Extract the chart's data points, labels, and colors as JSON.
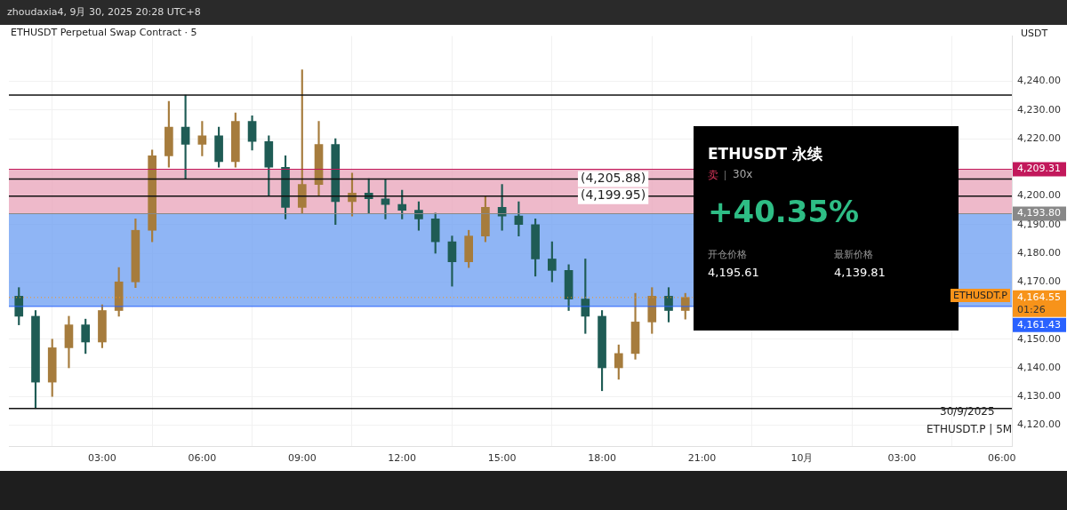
{
  "chart_data": {
    "type": "candlestick",
    "title": "ETHUSDT Perpetual Swap Contract · 5",
    "subtitle": "zhoudaxia4, 9月 30, 2025 20:28 UTC+8",
    "ylabel": "USDT",
    "x": [
      "2025-09-30T00:30",
      "2025-09-30T01:00",
      "2025-09-30T01:30",
      "2025-09-30T02:00",
      "2025-09-30T02:30",
      "2025-09-30T03:00",
      "2025-09-30T03:30",
      "2025-09-30T04:00",
      "2025-09-30T04:30",
      "2025-09-30T05:00",
      "2025-09-30T05:30",
      "2025-09-30T06:00",
      "2025-09-30T06:30",
      "2025-09-30T07:00",
      "2025-09-30T07:30",
      "2025-09-30T08:00",
      "2025-09-30T08:30",
      "2025-09-30T09:00",
      "2025-09-30T09:30",
      "2025-09-30T10:00",
      "2025-09-30T10:30",
      "2025-09-30T11:00",
      "2025-09-30T11:30",
      "2025-09-30T12:00",
      "2025-09-30T12:30",
      "2025-09-30T13:00",
      "2025-09-30T13:30",
      "2025-09-30T14:00",
      "2025-09-30T14:30",
      "2025-09-30T15:00",
      "2025-09-30T15:30",
      "2025-09-30T16:00",
      "2025-09-30T16:30",
      "2025-09-30T17:00",
      "2025-09-30T17:30",
      "2025-09-30T18:00",
      "2025-09-30T18:30",
      "2025-09-30T19:00",
      "2025-09-30T19:30",
      "2025-09-30T20:00",
      "2025-09-30T20:30"
    ],
    "ohlc": [
      [
        4165,
        4168,
        4155,
        4158
      ],
      [
        4158,
        4160,
        4125.8,
        4135
      ],
      [
        4135,
        4150,
        4130,
        4147
      ],
      [
        4147,
        4158,
        4140,
        4155
      ],
      [
        4155,
        4157,
        4145,
        4149
      ],
      [
        4149,
        4162,
        4147,
        4160
      ],
      [
        4160,
        4175,
        4158,
        4170
      ],
      [
        4170,
        4192,
        4168,
        4188
      ],
      [
        4188,
        4216,
        4184,
        4214
      ],
      [
        4214,
        4233,
        4210,
        4224
      ],
      [
        4224,
        4235.2,
        4206,
        4218
      ],
      [
        4218,
        4226,
        4214,
        4221
      ],
      [
        4221,
        4224,
        4210,
        4212
      ],
      [
        4212,
        4229,
        4210,
        4226
      ],
      [
        4226,
        4228,
        4216,
        4219
      ],
      [
        4219,
        4221,
        4200,
        4210
      ],
      [
        4210,
        4214,
        4192,
        4196
      ],
      [
        4196,
        4244,
        4194,
        4204
      ],
      [
        4204,
        4226,
        4200,
        4218
      ],
      [
        4218,
        4220,
        4190,
        4198
      ],
      [
        4198,
        4208,
        4193,
        4201
      ],
      [
        4201,
        4206,
        4194,
        4199
      ],
      [
        4199,
        4205.88,
        4192,
        4197
      ],
      [
        4197,
        4202,
        4192,
        4195
      ],
      [
        4195,
        4198,
        4188,
        4192
      ],
      [
        4192,
        4194,
        4180,
        4184
      ],
      [
        4184,
        4186,
        4168.5,
        4177
      ],
      [
        4177,
        4188,
        4175,
        4186
      ],
      [
        4186,
        4200,
        4184,
        4196
      ],
      [
        4196,
        4204,
        4188,
        4193
      ],
      [
        4193,
        4198,
        4186,
        4190
      ],
      [
        4190,
        4192,
        4172,
        4178
      ],
      [
        4178,
        4184,
        4170,
        4174
      ],
      [
        4174,
        4176,
        4160,
        4164
      ],
      [
        4164,
        4178,
        4152,
        4158
      ],
      [
        4158,
        4160,
        4132,
        4140
      ],
      [
        4140,
        4148,
        4136,
        4145
      ],
      [
        4145,
        4166,
        4143,
        4156
      ],
      [
        4156,
        4168,
        4152,
        4165
      ],
      [
        4165,
        4168,
        4156,
        4160
      ],
      [
        4160,
        4166,
        4157,
        4164.55
      ]
    ],
    "xlim": [
      "2025-09-30T00:12",
      "2025-10-01T06:18"
    ],
    "xticks": [
      {
        "value": "2025-09-30T03:00",
        "label": "03:00"
      },
      {
        "value": "2025-09-30T06:00",
        "label": "06:00"
      },
      {
        "value": "2025-09-30T09:00",
        "label": "09:00"
      },
      {
        "value": "2025-09-30T12:00",
        "label": "12:00"
      },
      {
        "value": "2025-09-30T15:00",
        "label": "15:00"
      },
      {
        "value": "2025-09-30T18:00",
        "label": "18:00"
      },
      {
        "value": "2025-09-30T21:00",
        "label": "21:00"
      },
      {
        "value": "2025-10-01T00:00",
        "label": "10月"
      },
      {
        "value": "2025-10-01T03:00",
        "label": "03:00"
      },
      {
        "value": "2025-10-01T06:00",
        "label": "06:00"
      }
    ],
    "ylim": [
      4112.7,
      4255.8
    ],
    "yticks": [
      {
        "value": 4120,
        "label": "4,120.00"
      },
      {
        "value": 4130,
        "label": "4,130.00"
      },
      {
        "value": 4140,
        "label": "4,140.00"
      },
      {
        "value": 4150,
        "label": "4,150.00"
      },
      {
        "value": 4170,
        "label": "4,170.00"
      },
      {
        "value": 4180,
        "label": "4,180.00"
      },
      {
        "value": 4190,
        "label": "4,190.00"
      },
      {
        "value": 4200,
        "label": "4,200.00"
      },
      {
        "value": 4220,
        "label": "4,220.00"
      },
      {
        "value": 4230,
        "label": "4,230.00"
      },
      {
        "value": 4240,
        "label": "4,240.00"
      }
    ],
    "grid": true,
    "legend": false,
    "bands": [
      {
        "axis": "y",
        "from": 4193.8,
        "to": 4209.31,
        "color": "#e8a1b8"
      },
      {
        "axis": "y",
        "from": 4161.43,
        "to": 4193.8,
        "color": "#6a9cf2"
      }
    ],
    "ref_lines": [
      {
        "axis": "y",
        "value": 4235.2
      },
      {
        "axis": "y",
        "value": 4205.88,
        "label": "(4,205.88)"
      },
      {
        "axis": "y",
        "value": 4199.95,
        "label": "(4,199.95)"
      },
      {
        "axis": "y",
        "value": 4161.43,
        "label": "4,161.43",
        "color": "#2962ff"
      },
      {
        "axis": "y",
        "value": 4125.8
      },
      {
        "axis": "y",
        "value": 4209.31,
        "label": "4,209.31",
        "color": "#c2185b"
      },
      {
        "axis": "y",
        "value": 4193.8,
        "label": "4,193.80",
        "color": "#888888"
      },
      {
        "axis": "y",
        "value": 4164.55,
        "label": "4,164.55",
        "color": "#f7931a",
        "line_style": "dotted"
      }
    ],
    "annotations": [
      "ETHUSDT 永续",
      "卖",
      "30x",
      "+40.35%",
      "开仓价格",
      "4,195.61",
      "最新价格",
      "4,139.81",
      "01:26",
      "ETHUSDT.P",
      "30/9/2025",
      "ETHUSDT.P | 5M"
    ]
  }
}
